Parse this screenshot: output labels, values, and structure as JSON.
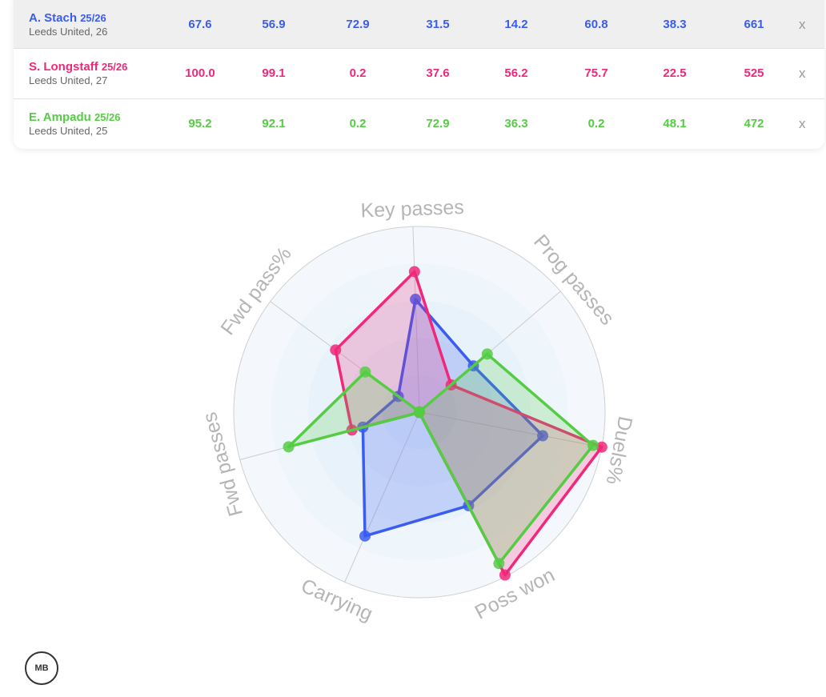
{
  "players": [
    {
      "name": "A. Stach",
      "season": "25/26",
      "team": "Leeds United, 26",
      "color": "#3a5cf0",
      "values": [
        "67.6",
        "56.9",
        "72.9",
        "31.5",
        "14.2",
        "60.8",
        "38.3",
        "661"
      ],
      "close": "x"
    },
    {
      "name": "S. Longstaff",
      "season": "25/26",
      "team": "Leeds United, 27",
      "color": "#f0287a",
      "values": [
        "100.0",
        "99.1",
        "0.2",
        "37.6",
        "56.2",
        "75.7",
        "22.5",
        "525"
      ],
      "close": "x"
    },
    {
      "name": "E. Ampadu",
      "season": "25/26",
      "team": "Leeds United, 25",
      "color": "#55cc44",
      "values": [
        "95.2",
        "92.1",
        "0.2",
        "72.9",
        "36.3",
        "0.2",
        "48.1",
        "472"
      ],
      "close": "x"
    }
  ],
  "chart_data": {
    "type": "radar",
    "axes": [
      "Key passes",
      "Prog passes",
      "Duels%",
      "Poss won",
      "Carrying",
      "Fwd passes",
      "Fwd pass%"
    ],
    "range": [
      0,
      100
    ],
    "series": [
      {
        "name": "A. Stach",
        "color": "#3a5cf0",
        "values": [
          60.8,
          38.3,
          67.6,
          56.9,
          72.9,
          31.5,
          14.2
        ]
      },
      {
        "name": "S. Longstaff",
        "color": "#f0287a",
        "values": [
          75.7,
          22.5,
          100.0,
          99.1,
          0.2,
          37.6,
          56.2
        ]
      },
      {
        "name": "E. Ampadu",
        "color": "#55cc44",
        "values": [
          0.2,
          48.1,
          95.2,
          92.1,
          0.2,
          72.9,
          36.3
        ]
      }
    ]
  },
  "logo": "MB"
}
